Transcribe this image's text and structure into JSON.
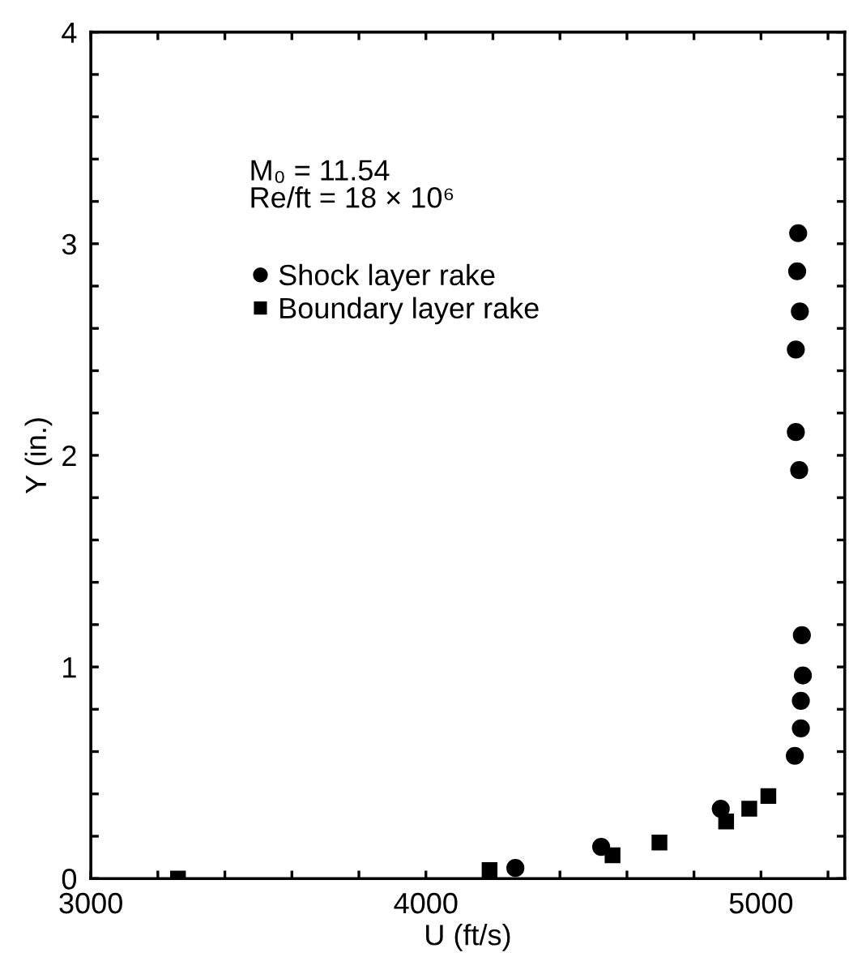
{
  "chart_data": {
    "type": "scatter",
    "xlabel": "U (ft/s)",
    "ylabel": "Y (in.)",
    "series": [
      {
        "name": "Shock layer rake",
        "marker": "circle",
        "color": "#000000",
        "x": [
          4267,
          4523,
          4880,
          5101,
          5119,
          5119,
          5125,
          5122,
          5114,
          5104,
          5104,
          5116,
          5108,
          5111
        ],
        "values": [
          0.05,
          0.15,
          0.33,
          0.58,
          0.71,
          0.84,
          0.96,
          1.15,
          1.93,
          2.11,
          2.5,
          2.68,
          2.87,
          3.05
        ]
      },
      {
        "name": "Boundary layer rake",
        "marker": "square",
        "color": "#000000",
        "x": [
          3260,
          4190,
          4557,
          4697,
          4896,
          4965,
          5022
        ],
        "values": [
          0.0,
          0.04,
          0.11,
          0.17,
          0.27,
          0.33,
          0.39
        ]
      }
    ],
    "xlim": [
      3000,
      5250
    ],
    "xticks": [
      3000,
      {
        "value": 3200,
        "label": null
      },
      {
        "value": 3400,
        "label": null
      },
      {
        "value": 3600,
        "label": null
      },
      {
        "value": 3800,
        "label": null
      },
      4000,
      {
        "value": 4200,
        "label": null
      },
      {
        "value": 4400,
        "label": null
      },
      {
        "value": 4600,
        "label": null
      },
      {
        "value": 4800,
        "label": null
      },
      5000,
      {
        "value": 5200,
        "label": null
      }
    ],
    "ylim": [
      0,
      4
    ],
    "yticks": [
      0,
      {
        "value": 0.2,
        "label": null
      },
      {
        "value": 0.4,
        "label": null
      },
      {
        "value": 0.6,
        "label": null
      },
      {
        "value": 0.8,
        "label": null
      },
      1,
      {
        "value": 1.2,
        "label": null
      },
      {
        "value": 1.4,
        "label": null
      },
      {
        "value": 1.6,
        "label": null
      },
      {
        "value": 1.8,
        "label": null
      },
      2,
      {
        "value": 2.2,
        "label": null
      },
      {
        "value": 2.4,
        "label": null
      },
      {
        "value": 2.6,
        "label": null
      },
      {
        "value": 2.8,
        "label": null
      },
      3,
      {
        "value": 3.2,
        "label": null
      },
      {
        "value": 3.4,
        "label": null
      },
      {
        "value": 3.6,
        "label": null
      },
      {
        "value": 3.8,
        "label": null
      },
      4
    ],
    "annotations": [
      "M₀ = 11.54",
      "Re/ft = 18 × 10⁶"
    ],
    "legend": "top left",
    "grid": false
  }
}
